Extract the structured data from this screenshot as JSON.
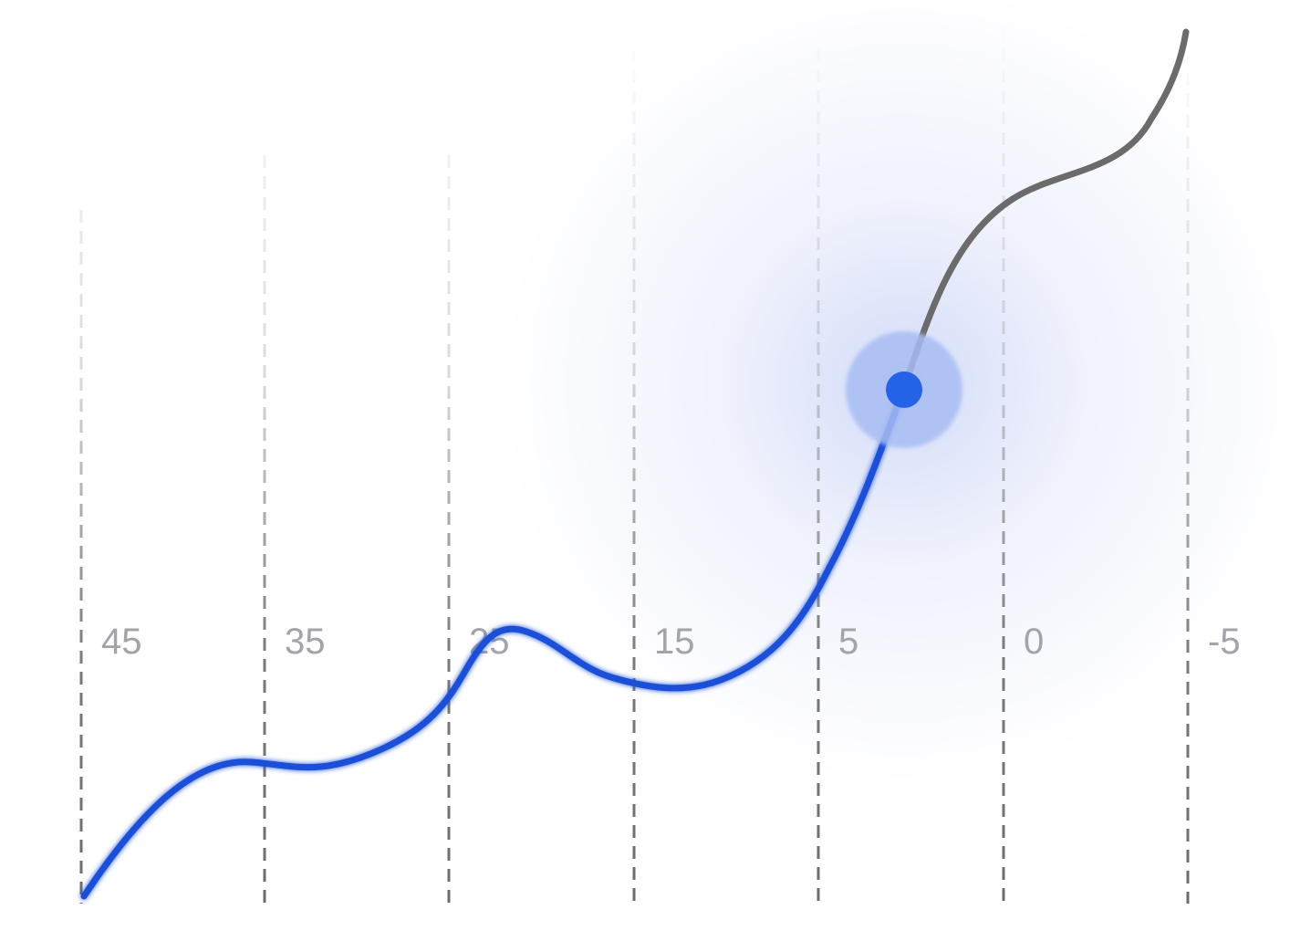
{
  "chart_data": {
    "type": "line",
    "x_ticks": [
      "45",
      "35",
      "25",
      "15",
      "5",
      "0",
      "-5"
    ],
    "grid": "vertical dashed",
    "colors": {
      "active_line": "#1f4fd8",
      "inactive_line": "#6b6b6b",
      "marker": "#2563e6",
      "marker_halo": "#a8bdf3",
      "glow": "#3a5fe0",
      "tick_label": "#a3a3aa"
    },
    "highlighted_point_tick_region": "between 5 and 0"
  }
}
